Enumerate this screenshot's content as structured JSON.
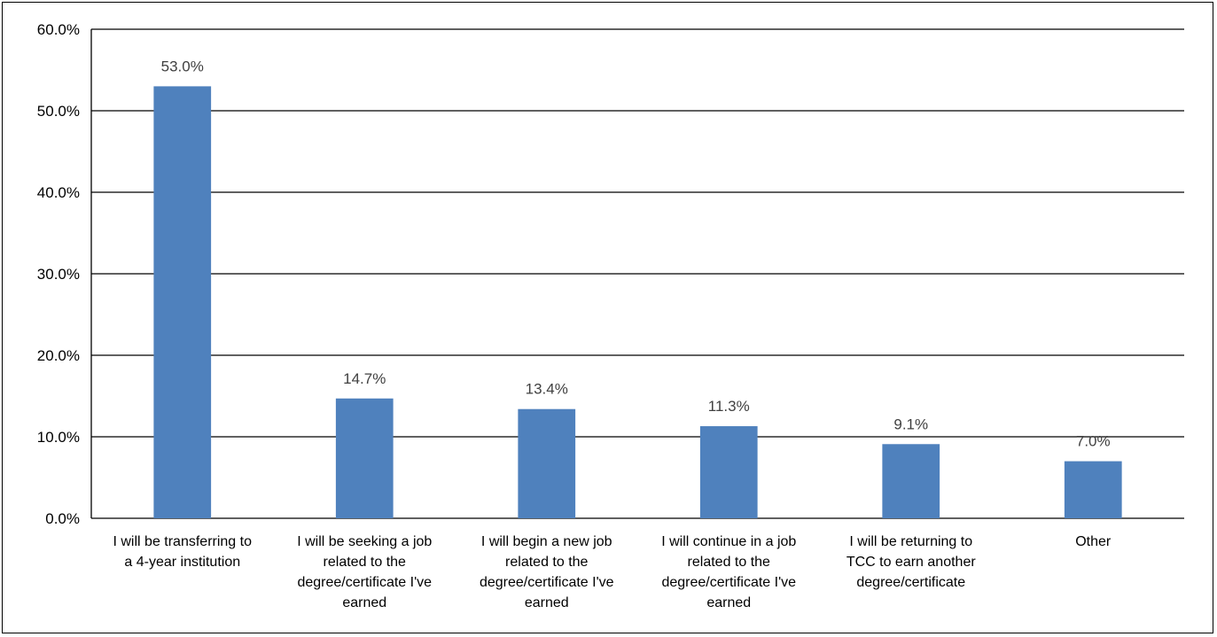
{
  "chart_data": {
    "type": "bar",
    "title": "",
    "xlabel": "",
    "ylabel": "",
    "ylim": [
      0,
      60
    ],
    "grid": true,
    "legend": "none",
    "bar_color": "#4f81bd",
    "y_ticks": [
      "0.0%",
      "10.0%",
      "20.0%",
      "30.0%",
      "40.0%",
      "50.0%",
      "60.0%"
    ],
    "categories": [
      [
        "I will be transferring to",
        "a 4-year institution"
      ],
      [
        "I will be seeking a job",
        "related to the",
        "degree/certificate I've",
        "earned"
      ],
      [
        "I will begin a new job",
        "related to the",
        "degree/certificate I've",
        "earned"
      ],
      [
        "I will continue in a job",
        "related to the",
        "degree/certificate I've",
        "earned"
      ],
      [
        "I will be returning to",
        "TCC to earn another",
        "degree/certificate"
      ],
      [
        "Other"
      ]
    ],
    "values": [
      53.0,
      14.7,
      13.4,
      11.3,
      9.1,
      7.0
    ],
    "data_labels": [
      "53.0%",
      "14.7%",
      "13.4%",
      "11.3%",
      "9.1%",
      "7.0%"
    ]
  }
}
